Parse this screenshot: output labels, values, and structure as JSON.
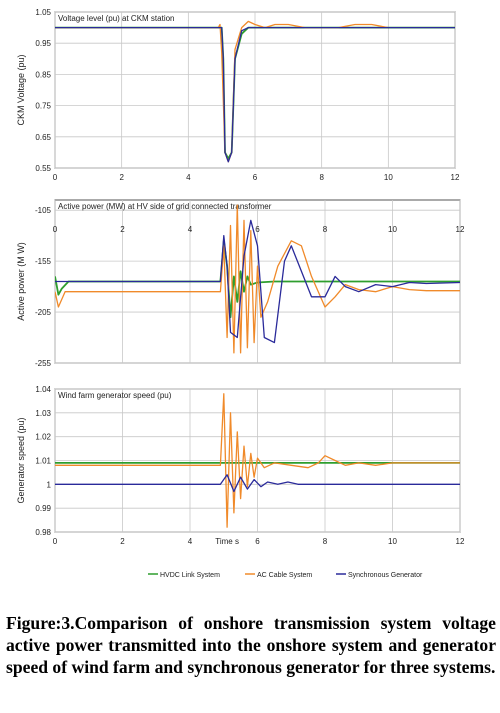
{
  "chart_data": [
    {
      "type": "line",
      "title": "Voltage level (pu) at CKM station",
      "ylabel": "CKM Voltage (pu)",
      "xlabel": "",
      "xlim": [
        0,
        12
      ],
      "ylim": [
        0.55,
        1.05
      ],
      "xticks": [
        "0",
        "2",
        "4",
        "6",
        "8",
        "10",
        "12"
      ],
      "yticks": [
        "1.05",
        "0.95",
        "0.85",
        "0.75",
        "0.65",
        "0.55"
      ],
      "grid": true,
      "series": [
        {
          "name": "HVDC Link System",
          "x": [
            0,
            5.0,
            5.05,
            5.1,
            5.2,
            5.3,
            5.4,
            5.6,
            5.8,
            6.0,
            12
          ],
          "y": [
            1.0,
            1.0,
            0.9,
            0.6,
            0.58,
            0.6,
            0.9,
            0.98,
            1.0,
            1.0,
            1.0
          ]
        },
        {
          "name": "AC Cable System",
          "x": [
            0,
            4.9,
            4.95,
            5.0,
            5.1,
            5.2,
            5.3,
            5.4,
            5.6,
            5.8,
            6.0,
            6.3,
            6.6,
            7.0,
            7.5,
            8.0,
            8.5,
            9.0,
            9.5,
            10.0
          ],
          "y": [
            1.0,
            1.0,
            1.01,
            0.92,
            0.6,
            0.57,
            0.6,
            0.93,
            1.0,
            1.02,
            1.01,
            1.0,
            1.01,
            1.01,
            1.0,
            1.0,
            1.0,
            1.01,
            1.01,
            1.0
          ]
        },
        {
          "name": "Synchronous Generator",
          "x": [
            0,
            5.0,
            5.05,
            5.1,
            5.2,
            5.3,
            5.4,
            5.6,
            5.8,
            12
          ],
          "y": [
            1.0,
            1.0,
            0.9,
            0.6,
            0.57,
            0.6,
            0.9,
            0.99,
            1.0,
            1.0
          ]
        }
      ]
    },
    {
      "type": "line",
      "title": "Active power (MW) at HV side of grid connected transformer",
      "ylabel": "Active power (M W)",
      "xlabel": "",
      "xlim": [
        0,
        12
      ],
      "ylim": [
        -255,
        -95
      ],
      "xticks": [
        "0",
        "2",
        "4",
        "6",
        "8",
        "10",
        "12"
      ],
      "yticks": [
        "-105",
        "-155",
        "-205",
        "-255"
      ],
      "grid": true,
      "series": [
        {
          "name": "HVDC Link System",
          "x": [
            0,
            0.1,
            0.2,
            0.4,
            4.9,
            5.0,
            5.1,
            5.2,
            5.3,
            5.4,
            5.5,
            5.6,
            5.7,
            5.8,
            6.0,
            6.5,
            7.0,
            12
          ],
          "y": [
            -170,
            -188,
            -182,
            -175,
            -175,
            -135,
            -160,
            -210,
            -170,
            -195,
            -165,
            -185,
            -170,
            -178,
            -176,
            -175,
            -175,
            -175
          ]
        },
        {
          "name": "AC Cable System",
          "x": [
            0,
            0.1,
            0.3,
            4.9,
            5.0,
            5.1,
            5.2,
            5.3,
            5.4,
            5.5,
            5.6,
            5.7,
            5.8,
            5.9,
            6.0,
            6.1,
            6.3,
            6.6,
            7.0,
            7.3,
            7.6,
            8.0,
            8.3,
            8.6,
            9.0,
            9.5,
            10.0,
            10.5,
            11.0,
            12
          ],
          "y": [
            -185,
            -200,
            -185,
            -185,
            -140,
            -230,
            -120,
            -245,
            -100,
            -245,
            -115,
            -240,
            -125,
            -235,
            -160,
            -210,
            -195,
            -160,
            -135,
            -140,
            -170,
            -200,
            -190,
            -178,
            -183,
            -185,
            -180,
            -183,
            -184,
            -184
          ]
        },
        {
          "name": "Synchronous Generator",
          "x": [
            0,
            4.9,
            5.0,
            5.1,
            5.2,
            5.4,
            5.6,
            5.8,
            6.0,
            6.2,
            6.5,
            6.8,
            7.0,
            7.3,
            7.6,
            8.0,
            8.3,
            8.6,
            9.0,
            9.5,
            10.0,
            10.5,
            11.0,
            12
          ],
          "y": [
            -175,
            -175,
            -130,
            -160,
            -225,
            -230,
            -150,
            -115,
            -140,
            -230,
            -235,
            -155,
            -140,
            -165,
            -190,
            -190,
            -170,
            -180,
            -185,
            -178,
            -180,
            -176,
            -177,
            -176
          ]
        }
      ]
    },
    {
      "type": "line",
      "title": "Wind farm generator speed (pu)",
      "ylabel": "Generator speed (pu)",
      "xlabel": "Time s",
      "xlim": [
        0,
        12
      ],
      "ylim": [
        0.98,
        1.04
      ],
      "xticks": [
        "0",
        "2",
        "4",
        "Time s",
        "6",
        "8",
        "10",
        "12"
      ],
      "yticks": [
        "1.04",
        "1.03",
        "1.02",
        "1.01",
        "1",
        "0.99",
        "0.98"
      ],
      "grid": true,
      "series": [
        {
          "name": "HVDC Link System",
          "x": [
            0,
            12
          ],
          "y": [
            1.009,
            1.009
          ]
        },
        {
          "name": "AC Cable System",
          "x": [
            0,
            4.9,
            5.0,
            5.1,
            5.2,
            5.3,
            5.4,
            5.5,
            5.6,
            5.7,
            5.8,
            5.9,
            6.0,
            6.2,
            6.5,
            7.0,
            7.5,
            7.8,
            8.0,
            8.3,
            8.6,
            9.0,
            9.5,
            10.0,
            12
          ],
          "y": [
            1.008,
            1.008,
            1.038,
            0.982,
            1.03,
            0.988,
            1.022,
            0.994,
            1.016,
            0.999,
            1.013,
            1.003,
            1.011,
            1.007,
            1.009,
            1.008,
            1.007,
            1.009,
            1.012,
            1.01,
            1.008,
            1.009,
            1.008,
            1.009,
            1.009
          ]
        },
        {
          "name": "Synchronous Generator",
          "x": [
            0,
            4.9,
            5.1,
            5.3,
            5.5,
            5.7,
            5.9,
            6.1,
            6.3,
            6.6,
            6.9,
            7.2,
            7.5,
            8.0,
            12
          ],
          "y": [
            1.0,
            1.0,
            1.004,
            0.997,
            1.003,
            0.998,
            1.002,
            0.999,
            1.001,
            1.0,
            1.001,
            1.0,
            1.0,
            1.0,
            1.0
          ]
        }
      ]
    }
  ],
  "legend": {
    "position": "bottom-center",
    "items": [
      {
        "label": "HVDC Link System",
        "color": "#2e9e2e"
      },
      {
        "label": "AC Cable System",
        "color": "#f08a2a"
      },
      {
        "label": "Synchronous Generator",
        "color": "#2a2a9a"
      }
    ]
  },
  "colors": {
    "hvdc": "#2e9e2e",
    "ac": "#f08a2a",
    "sync": "#2a2a9a",
    "grid": "#c8c8c8",
    "frame": "#555555"
  },
  "caption": {
    "lines": [
      "Figure:3.Comparison of onshore transmission system",
      "voltage active power transmitted into the onshore",
      "system and generator speed of wind farm and",
      "synchronous generator for three systems."
    ]
  }
}
